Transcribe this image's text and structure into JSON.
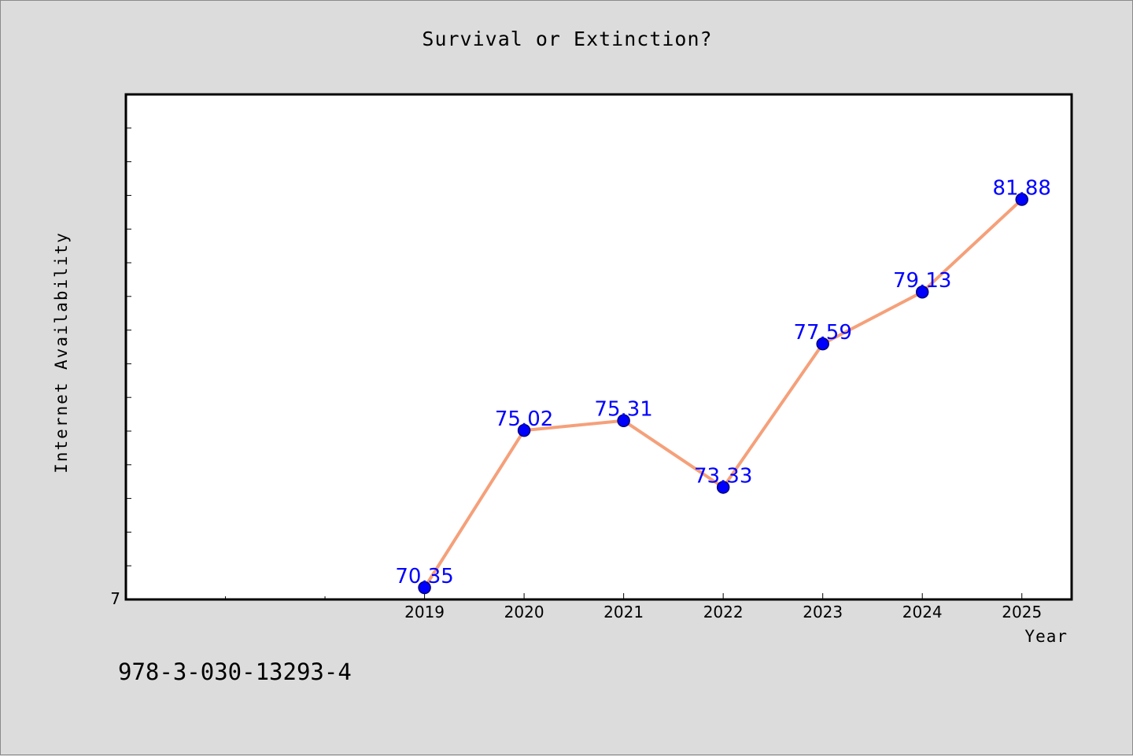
{
  "chart_data": {
    "type": "line",
    "title": "Survival or Extinction?",
    "xlabel": "Year",
    "ylabel": "Internet Availability",
    "categories": [
      "2019",
      "2020",
      "2021",
      "2022",
      "2023",
      "2024",
      "2025"
    ],
    "values": [
      70.35,
      75.02,
      75.31,
      73.33,
      77.59,
      79.13,
      81.88
    ],
    "data_labels": [
      "70.35",
      "75.02",
      "75.31",
      "73.33",
      "77.59",
      "79.13",
      "81.88"
    ],
    "y_tick_label": "7",
    "ylim": [
      70,
      85
    ],
    "x_range_categories": [
      -3,
      6.5
    ],
    "grid": false,
    "line_color": "#f5a07a",
    "marker_color": "#0000ff",
    "label_color": "#0000ff",
    "plot_background": "#ffffff",
    "figure_background": "#dcdcdc"
  },
  "footer": {
    "text": "978-3-030-13293-4"
  }
}
